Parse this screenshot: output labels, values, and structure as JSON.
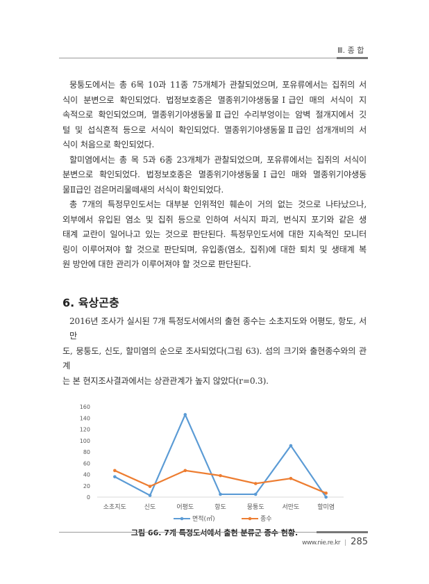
{
  "header": {
    "section": "Ⅲ. 종 합"
  },
  "paragraphs": [
    {
      "lines": [
        "뭉퉁도에서는 총 6목 10과 11종 75개체가 관찰되었으며, 포유류에서는 집쥐의 서",
        "식이 분변으로 확인되었다. 법정보호종은 멸종위기야생동물Ⅰ급인 매의 서식이 지",
        "속적으로 확인되었으며, 멸종위기야생동물Ⅱ급인 수리부엉이는 암벽 절개지에서 깃",
        "털 및 섭식흔적 등으로 서식이 확인되었다. 멸종위기야생동물Ⅱ급인 섬개개비의 서",
        "식이 처음으로 확인되었다."
      ]
    },
    {
      "lines": [
        "할미염에서는 총 목 5과 6종 23개체가 관찰되었으며, 포유류에서는 집쥐의 서식이",
        "분변으로 확인되었다. 법정보호종은 멸종위기야생동물Ⅰ급인 매와 멸종위기야생동",
        "물Ⅱ급인 검은머리물떼새의 서식이 확인되었다."
      ]
    },
    {
      "lines": [
        "총 7개의 특정무인도서는 대부분 인위적인 훼손이 거의 없는 것으로 나타났으나,",
        "외부에서 유입된 염소 및 집쥐 등으로 인하여 서식지 파괴, 번식지 포기와 같은 생",
        "태계 교란이 일어나고 있는 것으로 판단된다. 특정무인도서에 대한 지속적인 모니터",
        "링이 이루어져야 할 것으로 판단되며, 유입종(염소, 집쥐)에 대한 퇴치 및 생태계 복",
        "원 방안에 대한 관리가 이루어져야 할 것으로 판단된다."
      ]
    }
  ],
  "section_heading": "6. 육상곤충",
  "paragraph_after": {
    "lines": [
      "2016년 조사가 실시된 7개 특정도서에서의 출현 종수는 소초지도와 어평도, 항도, 서만",
      "도, 뭉퉁도, 신도, 할미염의 순으로 조사되었다(그림 63). 섬의 크기와 출현종수와의 관계",
      "는 본 현지조사결과에서는 상관관계가 높지 않았다(r=0.3)."
    ]
  },
  "chart_data": {
    "type": "line",
    "categories": [
      "소초지도",
      "신도",
      "어평도",
      "항도",
      "뭉퉁도",
      "서만도",
      "할미염"
    ],
    "series": [
      {
        "name": "면적(㎡)",
        "values": [
          36,
          3,
          146,
          5,
          5,
          91,
          0
        ],
        "color": "#5b9bd5"
      },
      {
        "name": "종수",
        "values": [
          47,
          19,
          47,
          38,
          24,
          33,
          7
        ],
        "color": "#ed7d31"
      }
    ],
    "ylim": [
      0,
      160
    ],
    "yticks": [
      0,
      20,
      40,
      60,
      80,
      100,
      120,
      140,
      160
    ],
    "grid": false,
    "legend": "bottom"
  },
  "caption": "그림 66. 7개 특정도서에서 출현 분류군 종수 현황.",
  "footer": {
    "site": "www.nie.re.kr",
    "separator": "|",
    "page": "285"
  }
}
